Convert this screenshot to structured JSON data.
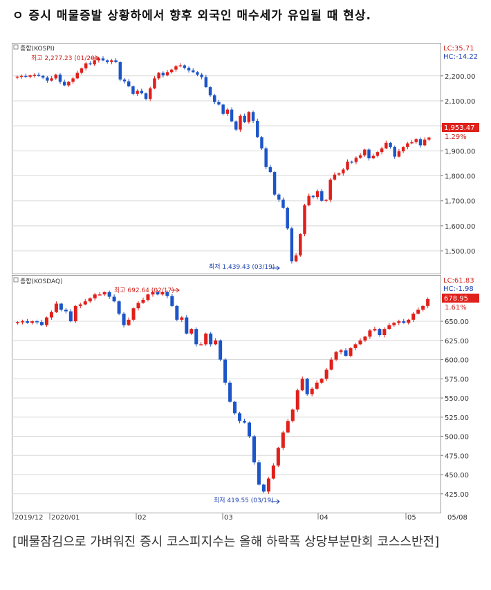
{
  "headline": "ㅇ 증시 매물증발 상황하에서 향후 외국인 매수세가 유입될 때 현상.",
  "caption": "[매물잠김으로 가벼워진 증시 코스피지수는 올해 하락폭 상당부분만회 코스스반전]",
  "colors": {
    "up": "#e0201b",
    "down": "#1c55c8",
    "grid": "#d8d8d8",
    "axis": "#777777",
    "annotation_hi": "#d0201b",
    "annotation_lo": "#1a3fb0"
  },
  "chart_data": [
    {
      "type": "candlestick",
      "title": "종합(KOSPI)",
      "lc_text": "LC:35.71",
      "hc_text": "HC:-14.22",
      "current_label": "1,953.47",
      "pct_label": "1.29%",
      "high_annotation": "최고 2,277.23 (01/20)",
      "low_annotation": "최저 1,439.43 (03/19)",
      "ylim": [
        1420,
        2310
      ],
      "y_ticks": [
        "2,200.00",
        "2,100.00",
        "2,000.00",
        "1,900.00",
        "1,800.00",
        "1,700.00",
        "1,600.00",
        "1,500.00"
      ],
      "y_tick_values": [
        2200,
        2100,
        2000,
        1900,
        1800,
        1700,
        1600,
        1500
      ],
      "closes": [
        2197,
        2200,
        2196,
        2202,
        2204,
        2200,
        2193,
        2181,
        2190,
        2205,
        2176,
        2162,
        2176,
        2190,
        2212,
        2230,
        2250,
        2246,
        2262,
        2270,
        2262,
        2255,
        2262,
        2255,
        2185,
        2178,
        2158,
        2128,
        2140,
        2130,
        2108,
        2150,
        2190,
        2212,
        2202,
        2215,
        2225,
        2238,
        2242,
        2232,
        2222,
        2215,
        2205,
        2195,
        2155,
        2122,
        2095,
        2085,
        2048,
        2065,
        2018,
        1985,
        2040,
        2015,
        2055,
        2020,
        1955,
        1910,
        1835,
        1815,
        1725,
        1705,
        1672,
        1590,
        1458,
        1482,
        1567,
        1682,
        1720,
        1715,
        1739,
        1700,
        1704,
        1785,
        1805,
        1810,
        1825,
        1857,
        1855,
        1872,
        1882,
        1905,
        1870,
        1880,
        1895,
        1910,
        1932,
        1915,
        1877,
        1898,
        1915,
        1930,
        1935,
        1947,
        1922,
        1945,
        1953
      ]
    },
    {
      "type": "candlestick",
      "title": "종합(KOSDAQ)",
      "lc_text": "LC:61.83",
      "hc_text": "HC:-1.98",
      "current_label": "678.95",
      "pct_label": "1.61%",
      "high_annotation": "최고 692.64 (02/17)",
      "low_annotation": "최저 419.55 (03/19)",
      "ylim": [
        405,
        705
      ],
      "y_ticks": [
        "650.00",
        "625.00",
        "600.00",
        "575.00",
        "550.00",
        "525.00",
        "500.00",
        "475.00",
        "450.00",
        "425.00"
      ],
      "y_tick_values": [
        650,
        625,
        600,
        575,
        550,
        525,
        500,
        475,
        450,
        425
      ],
      "closes": [
        649,
        650,
        648,
        650,
        649,
        645,
        655,
        662,
        673,
        665,
        663,
        650,
        670,
        672,
        676,
        680,
        685,
        685,
        688,
        682,
        676,
        660,
        645,
        652,
        667,
        674,
        678,
        685,
        688,
        685,
        688,
        683,
        670,
        652,
        655,
        634,
        640,
        620,
        620,
        634,
        620,
        625,
        600,
        570,
        545,
        530,
        520,
        518,
        500,
        466,
        437,
        428,
        445,
        462,
        485,
        505,
        520,
        535,
        560,
        575,
        555,
        562,
        570,
        575,
        587,
        600,
        610,
        612,
        605,
        615,
        620,
        625,
        630,
        638,
        640,
        632,
        640,
        645,
        648,
        650,
        648,
        652,
        660,
        665,
        670,
        679
      ]
    }
  ],
  "x_axis_labels": [
    "2019/12",
    "2020/01",
    "02",
    "03",
    "04",
    "05",
    "05/08"
  ]
}
